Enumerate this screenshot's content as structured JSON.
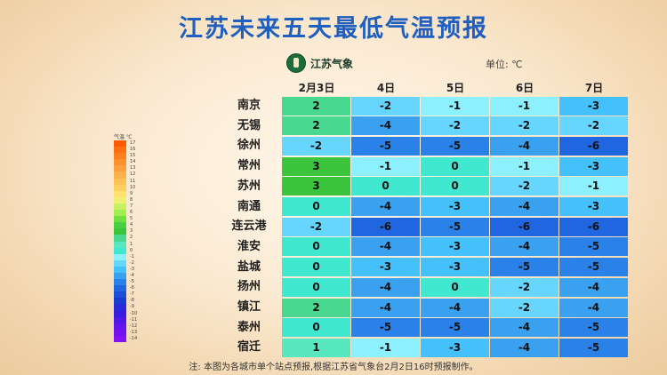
{
  "title": "江苏未来五天最低气温预报",
  "logo_text": "江苏气象",
  "unit": "单位: ℃",
  "dates": [
    "2月3日",
    "4日",
    "5日",
    "6日",
    "7日"
  ],
  "rows": [
    {
      "city": "南京",
      "values": [
        2,
        -2,
        -1,
        -1,
        -3
      ]
    },
    {
      "city": "无锡",
      "values": [
        2,
        -4,
        -2,
        -2,
        -2
      ]
    },
    {
      "city": "徐州",
      "values": [
        -2,
        -5,
        -5,
        -4,
        -6
      ]
    },
    {
      "city": "常州",
      "values": [
        3,
        -1,
        0,
        -1,
        -3
      ]
    },
    {
      "city": "苏州",
      "values": [
        3,
        0,
        0,
        -2,
        -1
      ]
    },
    {
      "city": "南通",
      "values": [
        0,
        -4,
        -3,
        -4,
        -3
      ]
    },
    {
      "city": "连云港",
      "values": [
        -2,
        -6,
        -5,
        -6,
        -6
      ]
    },
    {
      "city": "淮安",
      "values": [
        0,
        -4,
        -3,
        -4,
        -5
      ]
    },
    {
      "city": "盐城",
      "values": [
        0,
        -3,
        -3,
        -5,
        -5
      ]
    },
    {
      "city": "扬州",
      "values": [
        0,
        -4,
        0,
        -2,
        -4
      ]
    },
    {
      "city": "镇江",
      "values": [
        2,
        -4,
        -4,
        -2,
        -4
      ]
    },
    {
      "city": "泰州",
      "values": [
        0,
        -5,
        -5,
        -4,
        -5
      ]
    },
    {
      "city": "宿迁",
      "values": [
        1,
        -1,
        -3,
        -4,
        -5
      ]
    }
  ],
  "legend": {
    "title": "气温 ℃",
    "labels": [
      "17",
      "16",
      "15",
      "14",
      "13",
      "12",
      "11",
      "10",
      "9",
      "8",
      "7",
      "6",
      "5",
      "4",
      "3",
      "2",
      "1",
      "0",
      "-1",
      "-2",
      "-3",
      "-4",
      "-5",
      "-6",
      "-7",
      "-8",
      "-9",
      "-10",
      "-11",
      "-12",
      "-13",
      "-14"
    ]
  },
  "colors": {
    "title": "#1f5fc0",
    "3": "#3cc43c",
    "2": "#48d890",
    "1": "#58e8c0",
    "0": "#40e8d0",
    "-1": "#8cf0ff",
    "-2": "#66d6ff",
    "-3": "#44c0fa",
    "-4": "#3aa0f0",
    "-5": "#2a82e8",
    "-6": "#1f66e0",
    "legend": [
      "#ff5a00",
      "#ff6e10",
      "#ff7f20",
      "#ff9030",
      "#ffa040",
      "#ffb24a",
      "#ffc255",
      "#ffd060",
      "#ffe070",
      "#f0f070",
      "#c8f060",
      "#a0ee50",
      "#70e040",
      "#48d040",
      "#3cc43c",
      "#48d890",
      "#58e8c0",
      "#40e8d0",
      "#8cf0ff",
      "#66d6ff",
      "#44c0fa",
      "#3aa0f0",
      "#2a82e8",
      "#1f66e0",
      "#1a50d8",
      "#1a3cd0",
      "#2a2ad8",
      "#3a1ce0",
      "#5018e8",
      "#6414ec",
      "#7410f0",
      "#8410f4"
    ]
  },
  "footnote": "注: 本图为各城市单个站点预报,根据江苏省气象台2月2日16时预报制作。"
}
